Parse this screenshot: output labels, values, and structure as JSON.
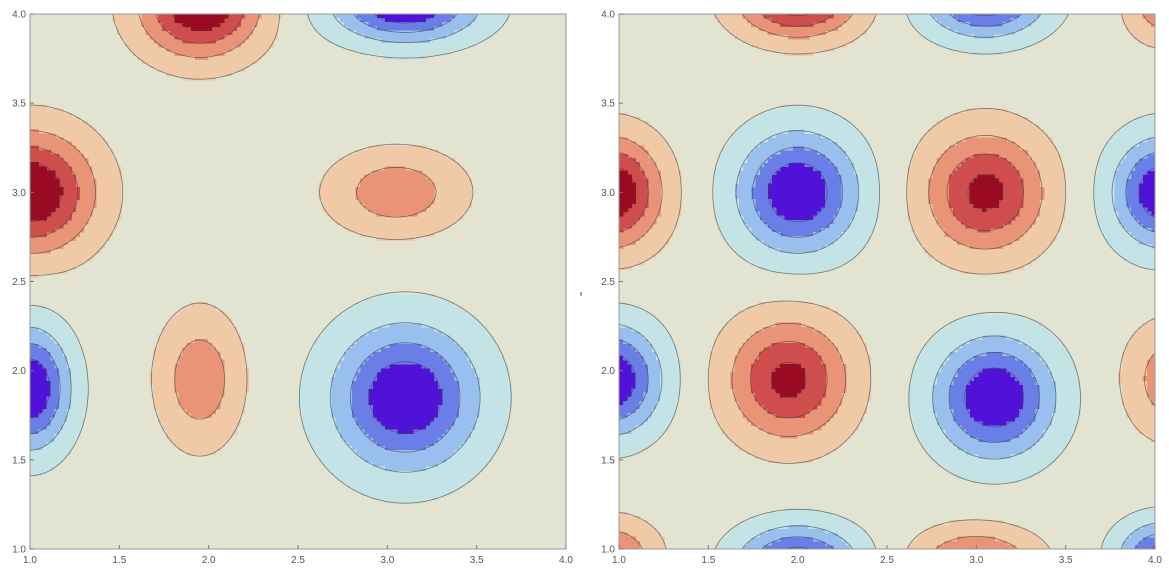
{
  "separator_text": ",",
  "chart_data": [
    {
      "type": "contour",
      "title": "",
      "xlabel": "",
      "ylabel": "",
      "xlim": [
        1.0,
        4.0
      ],
      "ylim": [
        1.0,
        4.0
      ],
      "x_ticks": [
        "1.0",
        "1.5",
        "2.0",
        "2.5",
        "3.0",
        "3.5",
        "4.0"
      ],
      "y_ticks": [
        "1.0",
        "1.5",
        "2.0",
        "2.5",
        "3.0",
        "3.5",
        "4.0"
      ],
      "grid": false,
      "levels": 9,
      "colorscheme": [
        "#5011d8",
        "#6a7ee8",
        "#98bfee",
        "#c4e3e6",
        "#e2e4d1",
        "#f0c9a7",
        "#e99377",
        "#cf4e4d",
        "#9a0a22"
      ],
      "features": [
        {
          "type": "max",
          "x": 1.95,
          "y": 4.05,
          "amp": 1.0,
          "sx": 0.33,
          "sy": 0.28
        },
        {
          "type": "max",
          "x": 1.0,
          "y": 3.0,
          "amp": 1.0,
          "sx": 0.35,
          "sy": 0.33
        },
        {
          "type": "max",
          "x": 3.05,
          "y": 3.0,
          "amp": 0.5,
          "sx": 0.35,
          "sy": 0.22
        },
        {
          "type": "max",
          "x": 1.95,
          "y": 1.95,
          "amp": 0.5,
          "sx": 0.22,
          "sy": 0.35
        },
        {
          "type": "min",
          "x": 3.1,
          "y": 1.85,
          "amp": 1.0,
          "sx": 0.4,
          "sy": 0.4
        },
        {
          "type": "min",
          "x": 1.0,
          "y": 1.9,
          "amp": 1.0,
          "sx": 0.22,
          "sy": 0.33
        },
        {
          "type": "min",
          "x": 3.1,
          "y": 4.05,
          "amp": 1.0,
          "sx": 0.4,
          "sy": 0.2
        }
      ]
    },
    {
      "type": "contour",
      "title": "",
      "xlabel": "",
      "ylabel": "",
      "xlim": [
        1.0,
        4.0
      ],
      "ylim": [
        1.0,
        4.0
      ],
      "x_ticks": [
        "1.0",
        "1.5",
        "2.0",
        "2.5",
        "3.0",
        "3.5",
        "4.0"
      ],
      "y_ticks": [
        "1.0",
        "1.5",
        "2.0",
        "2.5",
        "3.0",
        "3.5",
        "4.0"
      ],
      "grid": false,
      "levels": 9,
      "colorscheme": [
        "#5011d8",
        "#6a7ee8",
        "#98bfee",
        "#c4e3e6",
        "#e2e4d1",
        "#f0c9a7",
        "#e99377",
        "#cf4e4d",
        "#9a0a22"
      ],
      "features": [
        {
          "type": "min",
          "x": 2.0,
          "y": 3.0,
          "amp": 1.0,
          "sx": 0.33,
          "sy": 0.33
        },
        {
          "type": "max",
          "x": 3.05,
          "y": 3.0,
          "amp": 0.85,
          "sx": 0.33,
          "sy": 0.33
        },
        {
          "type": "max",
          "x": 1.95,
          "y": 1.95,
          "amp": 0.85,
          "sx": 0.33,
          "sy": 0.33
        },
        {
          "type": "min",
          "x": 3.1,
          "y": 1.85,
          "amp": 1.0,
          "sx": 0.33,
          "sy": 0.33
        },
        {
          "type": "max",
          "x": 0.95,
          "y": 3.0,
          "amp": 1.0,
          "sx": 0.28,
          "sy": 0.3
        },
        {
          "type": "min",
          "x": 4.05,
          "y": 3.0,
          "amp": 1.0,
          "sx": 0.28,
          "sy": 0.3
        },
        {
          "type": "min",
          "x": 0.95,
          "y": 1.95,
          "amp": 1.0,
          "sx": 0.28,
          "sy": 0.3
        },
        {
          "type": "max",
          "x": 4.1,
          "y": 1.95,
          "amp": 0.5,
          "sx": 0.25,
          "sy": 0.3
        },
        {
          "type": "max",
          "x": 2.0,
          "y": 4.1,
          "amp": 1.0,
          "sx": 0.33,
          "sy": 0.22
        },
        {
          "type": "min",
          "x": 3.05,
          "y": 4.1,
          "amp": 1.0,
          "sx": 0.33,
          "sy": 0.22
        },
        {
          "type": "max",
          "x": 4.05,
          "y": 4.05,
          "amp": 0.5,
          "sx": 0.2,
          "sy": 0.2
        },
        {
          "type": "min",
          "x": 2.0,
          "y": 0.9,
          "amp": 1.0,
          "sx": 0.33,
          "sy": 0.22
        },
        {
          "type": "max",
          "x": 3.0,
          "y": 0.9,
          "amp": 0.7,
          "sx": 0.33,
          "sy": 0.2
        },
        {
          "type": "max",
          "x": 0.95,
          "y": 0.95,
          "amp": 0.6,
          "sx": 0.25,
          "sy": 0.2
        },
        {
          "type": "min",
          "x": 4.05,
          "y": 0.95,
          "amp": 0.9,
          "sx": 0.25,
          "sy": 0.2
        }
      ]
    }
  ]
}
